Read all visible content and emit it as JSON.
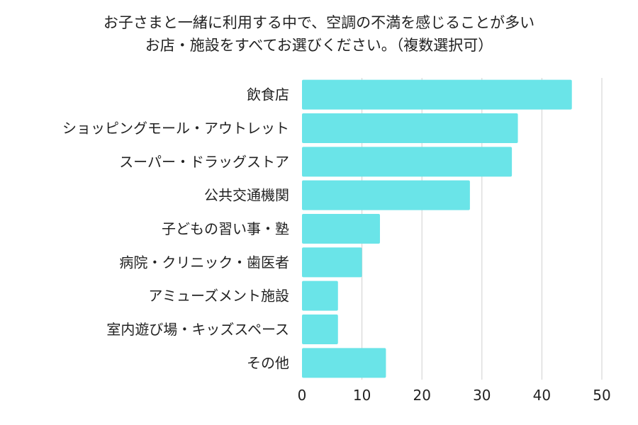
{
  "chart_data": {
    "type": "bar",
    "orientation": "horizontal",
    "title_lines": [
      "お子さまと一緒に利用する中で、空調の不満を感じることが多い",
      "お店・施設をすべてお選びください。（複数選択可）"
    ],
    "categories": [
      "飲食店",
      "ショッピングモール・アウトレット",
      "スーパー・ドラッグストア",
      "公共交通機関",
      "子どもの習い事・塾",
      "病院・クリニック・歯医者",
      "アミューズメント施設",
      "室内遊び場・キッズスペース",
      "その他"
    ],
    "values": [
      45,
      36,
      35,
      28,
      13,
      10,
      6,
      6,
      14
    ],
    "xlim": [
      0,
      50
    ],
    "xticks": [
      0,
      10,
      20,
      30,
      40,
      50
    ],
    "grid": true,
    "legend": "none",
    "colors": {
      "bar": "#6ae4e8",
      "grid": "#cfcfcf",
      "text": "#222222"
    }
  }
}
